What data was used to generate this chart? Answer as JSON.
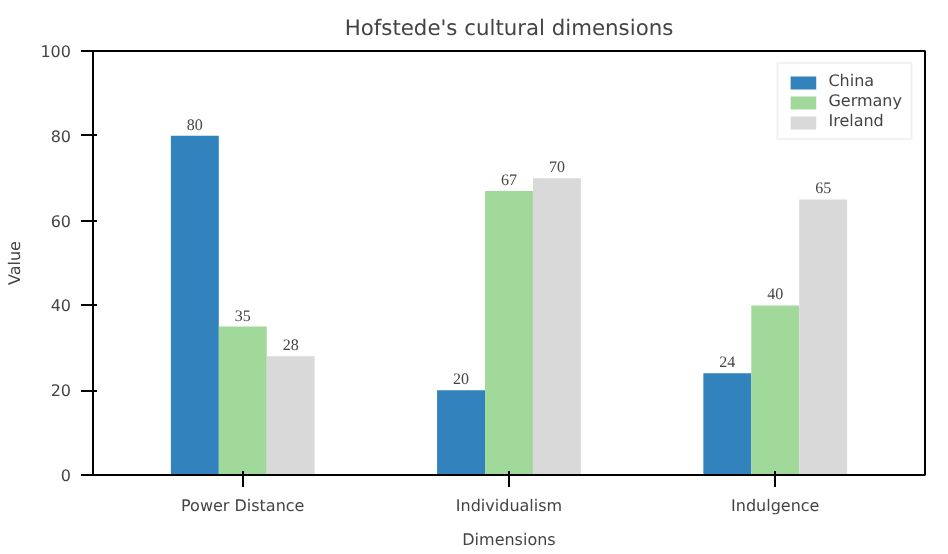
{
  "chart_data": {
    "type": "bar",
    "title": "Hofstede's cultural dimensions",
    "xlabel": "Dimensions",
    "ylabel": "Value",
    "categories": [
      "Power Distance",
      "Individualism",
      "Indulgence"
    ],
    "series": [
      {
        "name": "China",
        "color": "#3182bd",
        "values": [
          80,
          20,
          24
        ]
      },
      {
        "name": "Germany",
        "color": "#a1d99b",
        "values": [
          35,
          67,
          40
        ]
      },
      {
        "name": "Ireland",
        "color": "#d9d9d9",
        "values": [
          28,
          70,
          65
        ]
      }
    ],
    "ylim": [
      0,
      100
    ],
    "yticks": [
      0,
      20,
      40,
      60,
      80,
      100
    ],
    "grid": false,
    "legend": "top right",
    "data_labels": true
  }
}
